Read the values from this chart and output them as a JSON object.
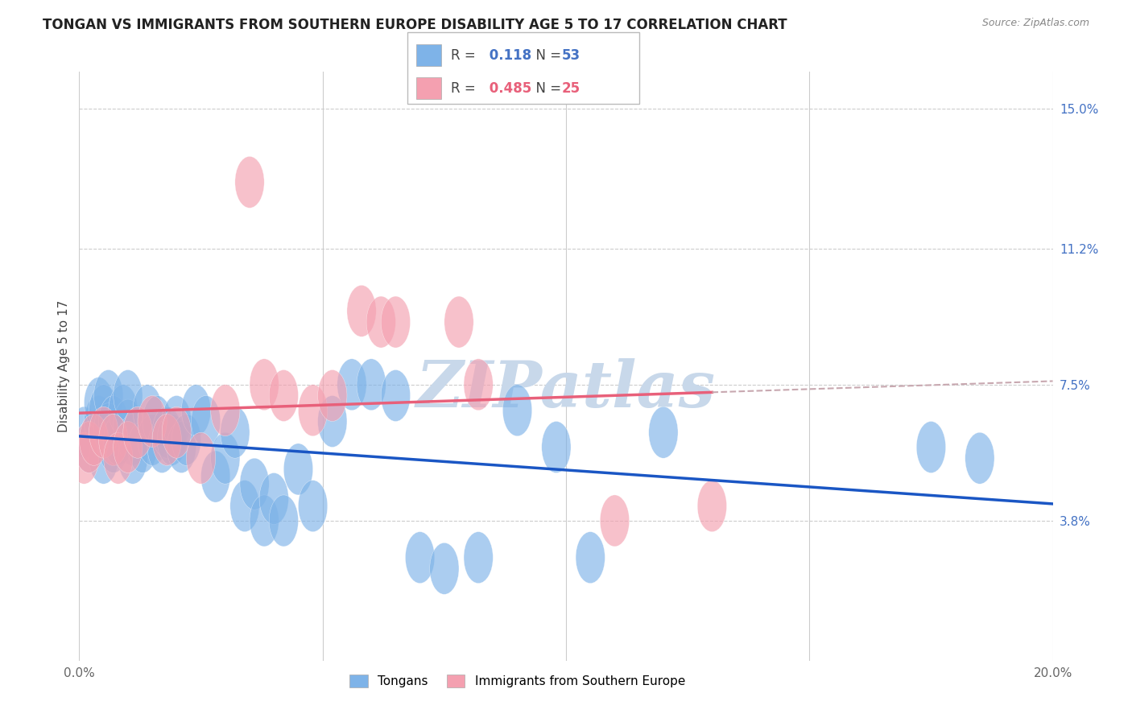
{
  "title": "TONGAN VS IMMIGRANTS FROM SOUTHERN EUROPE DISABILITY AGE 5 TO 17 CORRELATION CHART",
  "source": "Source: ZipAtlas.com",
  "ylabel": "Disability Age 5 to 17",
  "x_min": 0.0,
  "x_max": 0.2,
  "y_min": 0.0,
  "y_max": 0.16,
  "y_ticks": [
    0.038,
    0.075,
    0.112,
    0.15
  ],
  "y_tick_labels": [
    "3.8%",
    "7.5%",
    "11.2%",
    "15.0%"
  ],
  "x_ticks": [
    0.0,
    0.05,
    0.1,
    0.15,
    0.2
  ],
  "x_tick_labels": [
    "0.0%",
    "",
    "",
    "",
    "20.0%"
  ],
  "tongan_color": "#7EB3E8",
  "southern_europe_color": "#F4A0B0",
  "tongan_line_color": "#1A56C4",
  "southern_europe_line_color": "#E8607A",
  "southern_europe_dash_color": "#C8A8B0",
  "tongan_R": 0.118,
  "tongan_N": 53,
  "southern_europe_R": 0.485,
  "southern_europe_N": 25,
  "watermark": "ZIPatlas",
  "watermark_color": "#C8D8EA",
  "background_color": "#FFFFFF",
  "grid_color": "#CCCCCC",
  "title_fontsize": 12,
  "axis_label_fontsize": 11,
  "tick_fontsize": 11,
  "legend_fontsize": 12,
  "tongan_x": [
    0.001,
    0.002,
    0.003,
    0.004,
    0.004,
    0.005,
    0.005,
    0.006,
    0.006,
    0.007,
    0.007,
    0.008,
    0.009,
    0.01,
    0.01,
    0.011,
    0.011,
    0.012,
    0.013,
    0.014,
    0.015,
    0.016,
    0.017,
    0.018,
    0.019,
    0.02,
    0.021,
    0.022,
    0.024,
    0.026,
    0.028,
    0.03,
    0.032,
    0.034,
    0.036,
    0.038,
    0.04,
    0.042,
    0.045,
    0.048,
    0.052,
    0.056,
    0.06,
    0.065,
    0.07,
    0.075,
    0.082,
    0.09,
    0.098,
    0.105,
    0.12,
    0.175,
    0.185
  ],
  "tongan_y": [
    0.062,
    0.058,
    0.06,
    0.065,
    0.07,
    0.055,
    0.068,
    0.072,
    0.063,
    0.058,
    0.065,
    0.06,
    0.068,
    0.064,
    0.072,
    0.06,
    0.055,
    0.062,
    0.058,
    0.068,
    0.06,
    0.065,
    0.058,
    0.062,
    0.06,
    0.065,
    0.058,
    0.06,
    0.068,
    0.065,
    0.05,
    0.055,
    0.062,
    0.042,
    0.048,
    0.038,
    0.044,
    0.038,
    0.052,
    0.042,
    0.065,
    0.075,
    0.075,
    0.072,
    0.028,
    0.025,
    0.028,
    0.068,
    0.058,
    0.028,
    0.062,
    0.058,
    0.055
  ],
  "se_x": [
    0.001,
    0.002,
    0.003,
    0.005,
    0.007,
    0.008,
    0.01,
    0.012,
    0.015,
    0.018,
    0.02,
    0.025,
    0.03,
    0.035,
    0.038,
    0.042,
    0.048,
    0.052,
    0.058,
    0.062,
    0.065,
    0.078,
    0.082,
    0.11,
    0.13
  ],
  "se_y": [
    0.055,
    0.058,
    0.06,
    0.062,
    0.06,
    0.055,
    0.058,
    0.062,
    0.065,
    0.06,
    0.062,
    0.055,
    0.068,
    0.13,
    0.075,
    0.072,
    0.068,
    0.072,
    0.095,
    0.092,
    0.092,
    0.092,
    0.075,
    0.038,
    0.042
  ]
}
